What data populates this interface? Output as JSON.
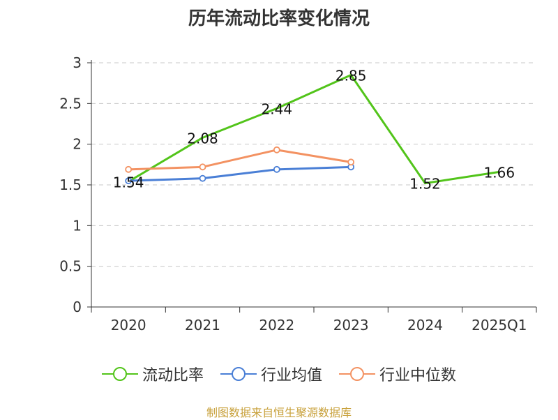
{
  "title": "历年流动比率变化情况",
  "source": "制图数据来自恒生聚源数据库",
  "colors": {
    "current_ratio": "#52c41a",
    "industry_avg": "#4a7fd6",
    "industry_median": "#f39262",
    "grid": "#c8c8c8",
    "axis": "#333333"
  },
  "chart_data": {
    "type": "line",
    "title": "历年流动比率变化情况",
    "categories": [
      "2020",
      "2021",
      "2022",
      "2023",
      "2024",
      "2025Q1"
    ],
    "ylim": [
      0,
      3
    ],
    "yticks": [
      "0",
      "0.5",
      "1",
      "1.5",
      "2",
      "2.5",
      "3"
    ],
    "grid": "horizontal dashed",
    "legend_position": "bottom",
    "series": [
      {
        "name": "流动比率",
        "color_key": "current_ratio",
        "values": [
          1.54,
          2.08,
          2.44,
          2.85,
          1.52,
          1.66
        ],
        "labels": [
          "1.54",
          "2.08",
          "2.44",
          "2.85",
          "1.52",
          "1.66"
        ],
        "markers": false
      },
      {
        "name": "行业均值",
        "color_key": "industry_avg",
        "values": [
          1.55,
          1.58,
          1.69,
          1.72,
          null,
          null
        ],
        "markers": true
      },
      {
        "name": "行业中位数",
        "color_key": "industry_median",
        "values": [
          1.69,
          1.72,
          1.93,
          1.78,
          null,
          null
        ],
        "markers": true
      }
    ]
  }
}
